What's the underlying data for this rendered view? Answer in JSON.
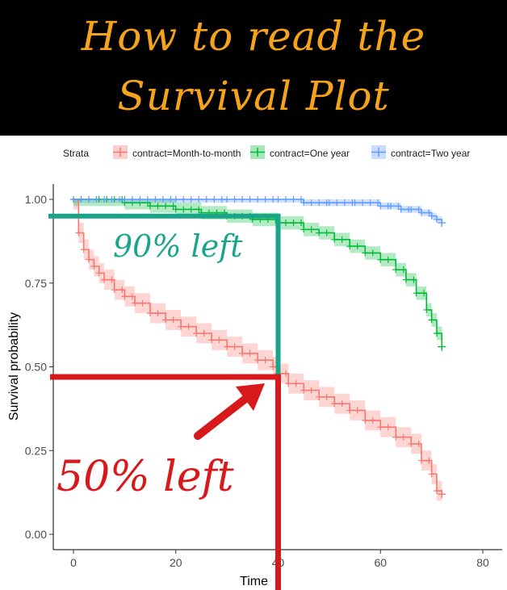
{
  "banner": {
    "line1": "How to read the",
    "line2": "Survival Plot"
  },
  "colors": {
    "banner_bg": "#000000",
    "banner_text": "#f5a31a",
    "month_to_month": "#f8766d",
    "one_year": "#00ba38",
    "two_year": "#619cff",
    "annotation_teal": "#1aa58a",
    "annotation_red": "#d7191c"
  },
  "annotations": {
    "ninety": "90% left",
    "fifty": "50% left"
  },
  "chart_data": {
    "type": "line",
    "step": true,
    "legend_title": "Strata",
    "legend_position": "top",
    "xlabel": "Time",
    "ylabel": "Survival probability",
    "xlim": [
      0,
      80
    ],
    "ylim": [
      0,
      1
    ],
    "x_ticks": [
      0,
      20,
      40,
      60,
      80
    ],
    "x_tick_labels": [
      "0",
      "20",
      "40",
      "60",
      "80"
    ],
    "y_ticks": [
      0,
      0.25,
      0.5,
      0.75,
      1
    ],
    "y_tick_labels": [
      "0.00",
      "0.25",
      "0.50",
      "0.75",
      "1.00"
    ],
    "grid": false,
    "series": [
      {
        "name": "contract=Month-to-month",
        "color_key": "month_to_month",
        "x": [
          0,
          1,
          2,
          3,
          4,
          5,
          6,
          8,
          10,
          12,
          15,
          18,
          21,
          24,
          27,
          30,
          33,
          36,
          39,
          40,
          42,
          45,
          48,
          51,
          54,
          57,
          60,
          63,
          66,
          68,
          70,
          71,
          72
        ],
        "y": [
          1.0,
          0.9,
          0.85,
          0.82,
          0.8,
          0.78,
          0.76,
          0.73,
          0.71,
          0.69,
          0.66,
          0.64,
          0.62,
          0.6,
          0.58,
          0.56,
          0.54,
          0.52,
          0.5,
          0.48,
          0.45,
          0.43,
          0.41,
          0.39,
          0.37,
          0.34,
          0.32,
          0.29,
          0.27,
          0.22,
          0.18,
          0.13,
          0.12
        ],
        "band": 0.03
      },
      {
        "name": "contract=One year",
        "color_key": "one_year",
        "x": [
          0,
          5,
          10,
          15,
          20,
          25,
          30,
          35,
          40,
          45,
          48,
          51,
          54,
          57,
          60,
          63,
          65,
          67,
          69,
          70,
          71,
          72
        ],
        "y": [
          1.0,
          1.0,
          0.99,
          0.98,
          0.97,
          0.96,
          0.95,
          0.94,
          0.93,
          0.91,
          0.9,
          0.88,
          0.86,
          0.84,
          0.82,
          0.79,
          0.76,
          0.72,
          0.67,
          0.64,
          0.6,
          0.56
        ],
        "band": 0.02
      },
      {
        "name": "contract=Two year",
        "color_key": "two_year",
        "x": [
          0,
          10,
          20,
          30,
          40,
          45,
          50,
          55,
          60,
          62,
          64,
          66,
          68,
          70,
          71,
          72
        ],
        "y": [
          1.0,
          1.0,
          1.0,
          1.0,
          1.0,
          0.99,
          0.99,
          0.99,
          0.98,
          0.98,
          0.97,
          0.97,
          0.96,
          0.95,
          0.94,
          0.93
        ],
        "band": 0.01
      }
    ],
    "overlay_guides": [
      {
        "color_key": "annotation_teal",
        "x": 40,
        "y": 0.95
      },
      {
        "color_key": "annotation_red",
        "x": 40,
        "y": 0.47
      }
    ]
  }
}
